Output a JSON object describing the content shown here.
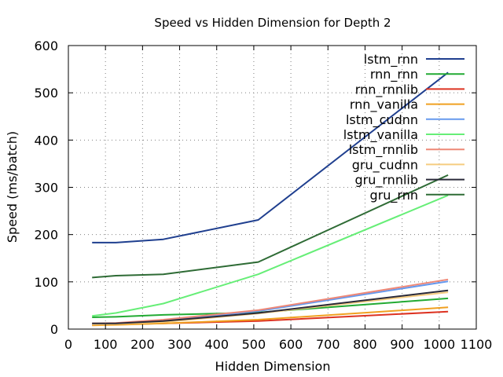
{
  "chart_data": {
    "type": "line",
    "title": "Speed vs Hidden Dimension for Depth 2",
    "xlabel": "Hidden Dimension",
    "ylabel": "Speed (ms/batch)",
    "xlim": [
      0,
      1100
    ],
    "ylim": [
      0,
      600
    ],
    "xticks": [
      0,
      100,
      200,
      300,
      400,
      500,
      600,
      700,
      800,
      900,
      1000,
      1100
    ],
    "yticks": [
      0,
      100,
      200,
      300,
      400,
      500,
      600
    ],
    "grid": true,
    "legend_position": "top-right",
    "x": [
      64,
      128,
      256,
      512,
      1024
    ],
    "series": [
      {
        "name": "lstm_rnn",
        "color": "#1f3f8f",
        "values": [
          183,
          183,
          190,
          231,
          543
        ]
      },
      {
        "name": "rnn_rnn",
        "color": "#22aa33",
        "values": [
          25,
          26,
          30,
          35,
          65
        ]
      },
      {
        "name": "rnn_rnnlib",
        "color": "#dd3322",
        "values": [
          9,
          10,
          12,
          17,
          37
        ]
      },
      {
        "name": "rnn_vanilla",
        "color": "#f0a020",
        "values": [
          8,
          9,
          12,
          20,
          46
        ]
      },
      {
        "name": "lstm_cudnn",
        "color": "#6699ee",
        "values": [
          11,
          12,
          18,
          38,
          101
        ]
      },
      {
        "name": "lstm_vanilla",
        "color": "#66ee77",
        "values": [
          28,
          34,
          54,
          116,
          283
        ]
      },
      {
        "name": "lstm_rnnlib",
        "color": "#ee8877",
        "values": [
          12,
          13,
          20,
          40,
          105
        ]
      },
      {
        "name": "gru_cudnn",
        "color": "#f5cc80",
        "values": [
          10,
          11,
          15,
          33,
          78
        ]
      },
      {
        "name": "gru_rnnlib",
        "color": "#2a2a3a",
        "values": [
          12,
          12,
          17,
          34,
          82
        ]
      },
      {
        "name": "gru_rnn",
        "color": "#2e6b35",
        "values": [
          109,
          113,
          116,
          142,
          326
        ]
      }
    ]
  }
}
